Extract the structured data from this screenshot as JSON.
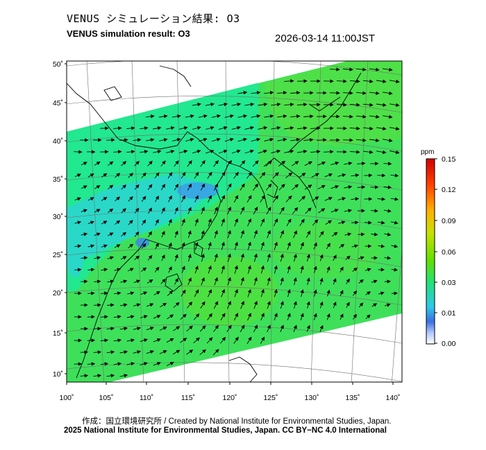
{
  "header": {
    "title_ja": "VENUS シミュレーション結果: O3",
    "title_en": "VENUS simulation result: O3",
    "timestamp": "2026-03-14 11:00JST"
  },
  "map": {
    "lon_ticks": [
      "100˚",
      "105˚",
      "110˚",
      "115˚",
      "120˚",
      "125˚",
      "130˚",
      "135˚",
      "140˚"
    ],
    "lat_ticks": [
      "50˚",
      "45˚",
      "40˚",
      "35˚",
      "30˚",
      "25˚",
      "20˚",
      "15˚",
      "10˚"
    ],
    "lon_range": [
      100,
      141
    ],
    "lat_range": [
      9,
      51
    ]
  },
  "colorbar": {
    "unit": "ppm",
    "ticks": [
      "0.15",
      "0.12",
      "0.09",
      "0.06",
      "0.03",
      "0.01",
      "0.00"
    ],
    "colors": [
      "#ffffff",
      "#3b6fe0",
      "#2ec8e8",
      "#22e07a",
      "#60e000",
      "#c8e000",
      "#ffb000",
      "#ff4000",
      "#d00000"
    ]
  },
  "colors": {
    "field_main": "#3ee05a",
    "field_light": "#22e890",
    "field_cyan": "#2ad8c8",
    "field_blue": "#3a90e8",
    "field_yellow": "#9ae020"
  },
  "footer": {
    "credit": "作成：国立環境研究所 / Created by National Institute for Environmental Studies, Japan.",
    "copyright": "2025 National Institute for Environmental Studies, Japan. CC BY−NC 4.0 International"
  }
}
